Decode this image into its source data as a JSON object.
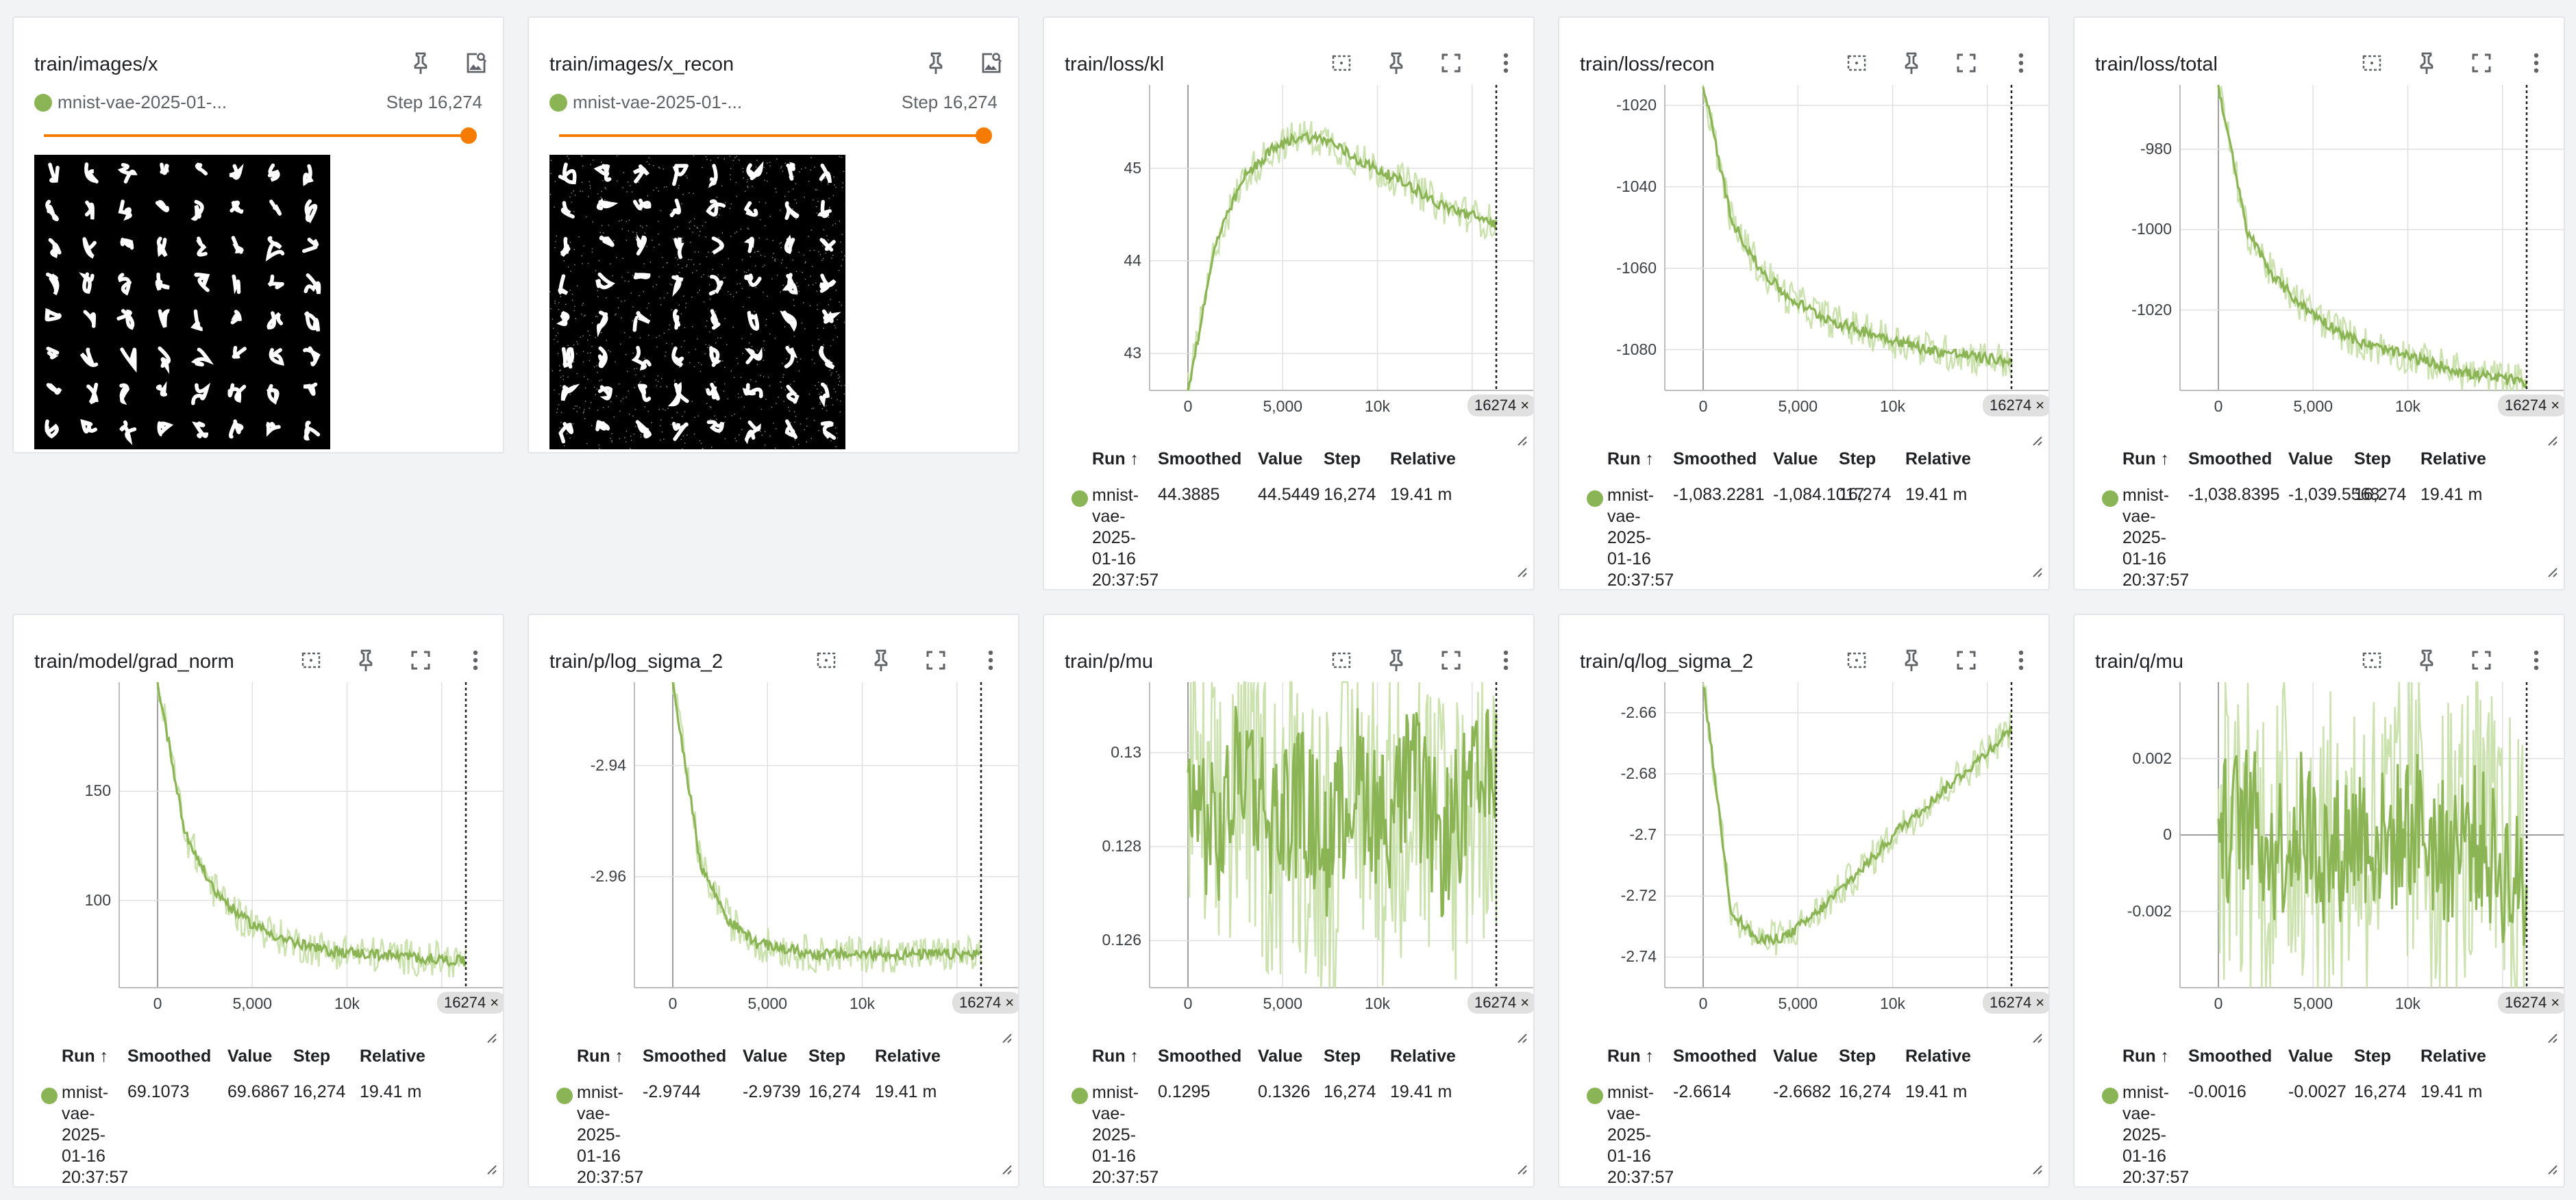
{
  "image_cards": [
    {
      "title": "train/images/x",
      "run": "mnist-vae-2025-01-...",
      "step": "Step 16,274",
      "kind": "orig"
    },
    {
      "title": "train/images/x_recon",
      "run": "mnist-vae-2025-01-...",
      "step": "Step 16,274",
      "kind": "recon"
    }
  ],
  "table_headers": {
    "run": "Run ↑",
    "smoothed": "Smoothed",
    "value": "Value",
    "step": "Step",
    "relative": "Relative"
  },
  "run_name_lines": [
    "mnist-",
    "vae-",
    "2025-",
    "01-16",
    "20:37:57"
  ],
  "run_color": "#8bb554",
  "xticks": [
    "0",
    "5,000",
    "10k"
  ],
  "step_chip": "16274 ×",
  "scalar_cards": [
    {
      "title": "train/loss/kl",
      "yticks": [
        "45",
        "44",
        "43"
      ],
      "smoothed": "44.3885",
      "value": "44.5449",
      "step": "16,274",
      "relative": "19.41 m",
      "chart_data": {
        "type": "line",
        "x_range": [
          0,
          16274
        ],
        "ylim": [
          42.6,
          45.9
        ],
        "series": [
          {
            "values": [
              42.6,
              44.2,
              44.9,
              45.2,
              45.35,
              45.3,
              45.1,
              44.95,
              44.8,
              44.6,
              44.5,
              44.4
            ]
          }
        ]
      }
    },
    {
      "title": "train/loss/recon",
      "yticks": [
        "-1020",
        "-1040",
        "-1060",
        "-1080"
      ],
      "smoothed": "-1,083.2281",
      "value": "-1,084.1017",
      "step": "16,274",
      "relative": "19.41 m",
      "chart_data": {
        "type": "line",
        "x_range": [
          0,
          16274
        ],
        "ylim": [
          -1090,
          -1015
        ],
        "series": [
          {
            "values": [
              -1015,
              -1048,
              -1060,
              -1067,
              -1071,
              -1074,
              -1076,
              -1078,
              -1080,
              -1081,
              -1082,
              -1083
            ]
          }
        ]
      }
    },
    {
      "title": "train/loss/total",
      "yticks": [
        "-980",
        "-1000",
        "-1020"
      ],
      "smoothed": "-1,038.8395",
      "value": "-1,039.5568",
      "step": "16,274",
      "relative": "19.41 m",
      "chart_data": {
        "type": "line",
        "x_range": [
          0,
          16274
        ],
        "ylim": [
          -1040,
          -964
        ],
        "series": [
          {
            "values": [
              -964,
              -1000,
              -1012,
              -1019,
              -1024,
              -1028,
              -1030,
              -1032,
              -1034,
              -1036,
              -1037,
              -1038
            ]
          }
        ]
      }
    },
    {
      "title": "train/model/grad_norm",
      "yticks": [
        "150",
        "100"
      ],
      "smoothed": "69.1073",
      "value": "69.6867",
      "step": "16,274",
      "relative": "19.41 m",
      "chart_data": {
        "type": "line",
        "x_range": [
          0,
          16274
        ],
        "ylim": [
          60,
          200
        ],
        "series": [
          {
            "values": [
              200,
              130,
              105,
              92,
              85,
              80,
              77,
              76,
              75,
              74,
              73,
              72
            ]
          }
        ]
      }
    },
    {
      "title": "train/p/log_sigma_2",
      "yticks": [
        "-2.94",
        "-2.96"
      ],
      "smoothed": "-2.9744",
      "value": "-2.9739",
      "step": "16,274",
      "relative": "19.41 m",
      "chart_data": {
        "type": "line",
        "x_range": [
          0,
          16274
        ],
        "ylim": [
          -2.98,
          -2.925
        ],
        "series": [
          {
            "values": [
              -2.925,
              -2.958,
              -2.968,
              -2.972,
              -2.973,
              -2.974,
              -2.974,
              -2.974,
              -2.974,
              -2.974,
              -2.974,
              -2.974
            ]
          }
        ]
      }
    },
    {
      "title": "train/p/mu",
      "yticks": [
        "0.13",
        "0.128",
        "0.126"
      ],
      "smoothed": "0.1295",
      "value": "0.1326",
      "step": "16,274",
      "relative": "19.41 m",
      "chart_data": {
        "type": "line",
        "x_range": [
          0,
          16274
        ],
        "ylim": [
          0.125,
          0.1315
        ],
        "series": [
          {
            "values": [
              0.1295,
              0.128,
              0.13,
              0.1285,
              0.129,
              0.128,
              0.1295,
              0.1285,
              0.1295,
              0.128,
              0.129,
              0.1295
            ]
          }
        ]
      }
    },
    {
      "title": "train/q/log_sigma_2",
      "yticks": [
        "-2.66",
        "-2.68",
        "-2.7",
        "-2.72",
        "-2.74"
      ],
      "smoothed": "-2.6614",
      "value": "-2.6682",
      "step": "16,274",
      "relative": "19.41 m",
      "chart_data": {
        "type": "line",
        "x_range": [
          0,
          16274
        ],
        "ylim": [
          -2.75,
          -2.65
        ],
        "series": [
          {
            "values": [
              -2.65,
              -2.725,
              -2.735,
              -2.733,
              -2.726,
              -2.717,
              -2.708,
              -2.698,
              -2.69,
              -2.682,
              -2.674,
              -2.665
            ]
          }
        ]
      }
    },
    {
      "title": "train/q/mu",
      "yticks": [
        "0.002",
        "0",
        "-0.002"
      ],
      "smoothed": "-0.0016",
      "value": "-0.0027",
      "step": "16,274",
      "relative": "19.41 m",
      "chart_data": {
        "type": "line",
        "x_range": [
          0,
          16274
        ],
        "ylim": [
          -0.004,
          0.004
        ],
        "series": [
          {
            "values": [
              0.0,
              0.0005,
              -0.0004,
              0.0003,
              -0.0006,
              0.0002,
              -0.0003,
              0.0004,
              -0.0005,
              0.0001,
              -0.0008,
              -0.0016
            ]
          }
        ]
      }
    }
  ]
}
